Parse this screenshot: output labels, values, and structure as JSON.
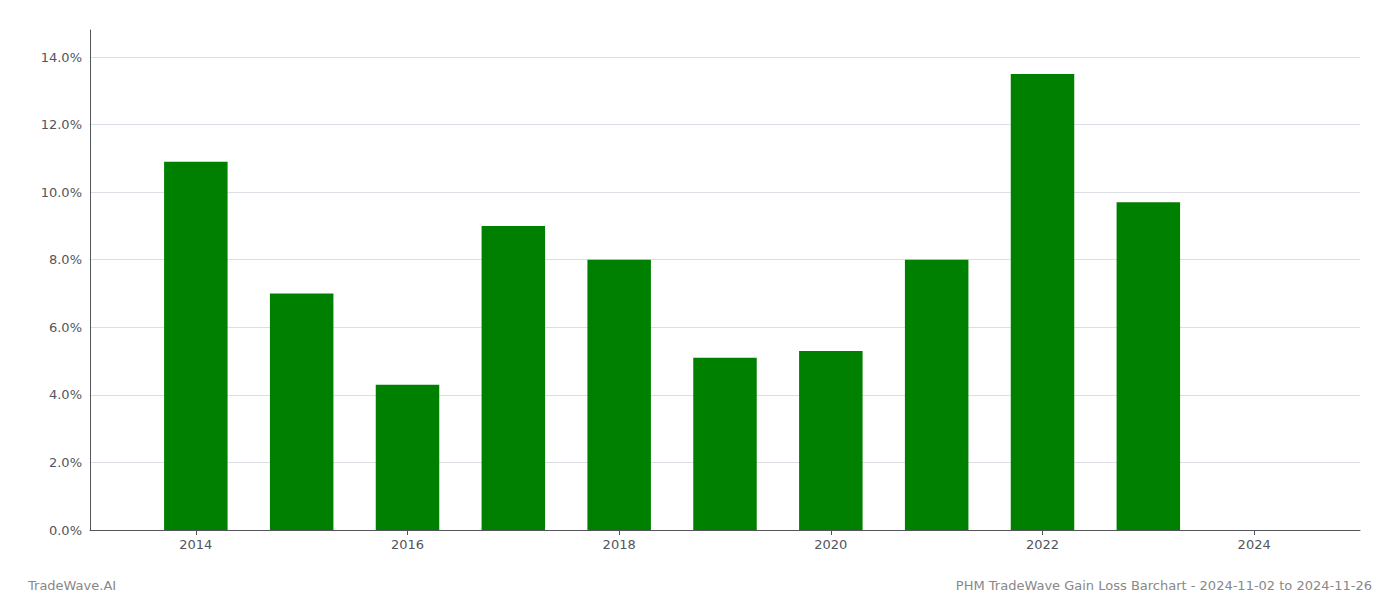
{
  "chart_data": {
    "type": "bar",
    "x": [
      2014,
      2015,
      2016,
      2017,
      2018,
      2019,
      2020,
      2021,
      2022,
      2023
    ],
    "values": [
      0.109,
      0.07,
      0.043,
      0.09,
      0.08,
      0.051,
      0.053,
      0.08,
      0.135,
      0.097
    ],
    "color": "#008000",
    "xlim": [
      2013.0,
      2025.0
    ],
    "xticks": [
      2014,
      2016,
      2018,
      2020,
      2022,
      2024
    ],
    "ylim": [
      0,
      0.148
    ],
    "yticks": [
      {
        "value": 0.0,
        "label": "0.0%"
      },
      {
        "value": 0.02,
        "label": "2.0%"
      },
      {
        "value": 0.04,
        "label": "4.0%"
      },
      {
        "value": 0.06,
        "label": "6.0%"
      },
      {
        "value": 0.08,
        "label": "8.0%"
      },
      {
        "value": 0.1,
        "label": "10.0%"
      },
      {
        "value": 0.12,
        "label": "12.0%"
      },
      {
        "value": 0.14,
        "label": "14.0%"
      }
    ],
    "grid": true,
    "annotations": [
      "TradeWave.AI",
      "PHM TradeWave Gain Loss Barchart - 2024-11-02 to 2024-11-26"
    ]
  }
}
